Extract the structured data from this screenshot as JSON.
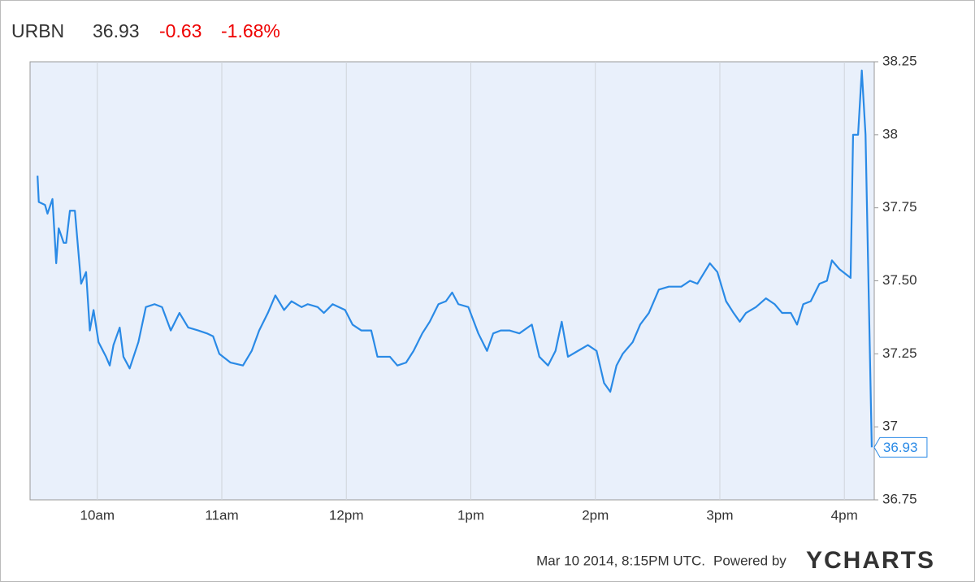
{
  "chart_data": {
    "type": "line",
    "symbol": "URBN",
    "last": "36.93",
    "change": "-0.63",
    "change_pct": "-1.68%",
    "footer": "Mar 10 2014, 8:15PM UTC.",
    "powered_by": "Powered by",
    "brand": "YCHARTS",
    "xlim": [
      9.46,
      16.24
    ],
    "xticks": [
      {
        "value": 10,
        "label": "10am"
      },
      {
        "value": 11,
        "label": "11am"
      },
      {
        "value": 12,
        "label": "12pm"
      },
      {
        "value": 13,
        "label": "1pm"
      },
      {
        "value": 14,
        "label": "2pm"
      },
      {
        "value": 15,
        "label": "3pm"
      },
      {
        "value": 16,
        "label": "4pm"
      }
    ],
    "ylim": [
      36.75,
      38.25
    ],
    "yticks": [
      36.75,
      37,
      37.25,
      {
        "value": 37.5,
        "label": "37.50"
      },
      37.75,
      38,
      38.25
    ],
    "grid": "x",
    "x": [
      9.52,
      9.53,
      9.58,
      9.6,
      9.64,
      9.67,
      9.69,
      9.73,
      9.75,
      9.78,
      9.82,
      9.87,
      9.91,
      9.94,
      9.97,
      10.01,
      10.07,
      10.1,
      10.13,
      10.18,
      10.21,
      10.26,
      10.33,
      10.39,
      10.46,
      10.52,
      10.59,
      10.66,
      10.73,
      10.81,
      10.88,
      10.93,
      10.98,
      11.07,
      11.17,
      11.24,
      11.3,
      11.37,
      11.43,
      11.5,
      11.56,
      11.64,
      11.69,
      11.77,
      11.82,
      11.89,
      11.99,
      12.05,
      12.12,
      12.2,
      12.25,
      12.35,
      12.41,
      12.48,
      12.54,
      12.61,
      12.67,
      12.74,
      12.8,
      12.85,
      12.9,
      12.98,
      13.06,
      13.13,
      13.18,
      13.24,
      13.31,
      13.39,
      13.49,
      13.55,
      13.62,
      13.68,
      13.73,
      13.78,
      13.86,
      13.94,
      14.01,
      14.07,
      14.12,
      14.17,
      14.22,
      14.3,
      14.36,
      14.43,
      14.51,
      14.59,
      14.69,
      14.76,
      14.82,
      14.92,
      14.98,
      15.05,
      15.11,
      15.16,
      15.21,
      15.29,
      15.37,
      15.44,
      15.5,
      15.57,
      15.62,
      15.67,
      15.73,
      15.8,
      15.86,
      15.9,
      15.96,
      16.05,
      16.07,
      16.11,
      16.14,
      16.17,
      16.22
    ],
    "series": [
      {
        "color": "#2a8ae6",
        "values": [
          37.86,
          37.77,
          37.76,
          37.73,
          37.78,
          37.56,
          37.68,
          37.63,
          37.63,
          37.74,
          37.74,
          37.49,
          37.53,
          37.33,
          37.4,
          37.29,
          37.24,
          37.21,
          37.28,
          37.34,
          37.24,
          37.2,
          37.29,
          37.41,
          37.42,
          37.41,
          37.33,
          37.39,
          37.34,
          37.33,
          37.32,
          37.31,
          37.25,
          37.22,
          37.21,
          37.26,
          37.33,
          37.39,
          37.45,
          37.4,
          37.43,
          37.41,
          37.42,
          37.41,
          37.39,
          37.42,
          37.4,
          37.35,
          37.33,
          37.33,
          37.24,
          37.24,
          37.21,
          37.22,
          37.26,
          37.32,
          37.36,
          37.42,
          37.43,
          37.46,
          37.42,
          37.41,
          37.32,
          37.26,
          37.32,
          37.33,
          37.33,
          37.32,
          37.35,
          37.24,
          37.21,
          37.26,
          37.36,
          37.24,
          37.26,
          37.28,
          37.26,
          37.15,
          37.12,
          37.21,
          37.25,
          37.29,
          37.35,
          37.39,
          37.47,
          37.48,
          37.48,
          37.5,
          37.49,
          37.56,
          37.53,
          37.43,
          37.39,
          37.36,
          37.39,
          37.41,
          37.44,
          37.42,
          37.39,
          37.39,
          37.35,
          37.42,
          37.43,
          37.49,
          37.5,
          37.57,
          37.54,
          37.51,
          38.0,
          38.0,
          38.22,
          38.0,
          36.93
        ]
      }
    ]
  }
}
